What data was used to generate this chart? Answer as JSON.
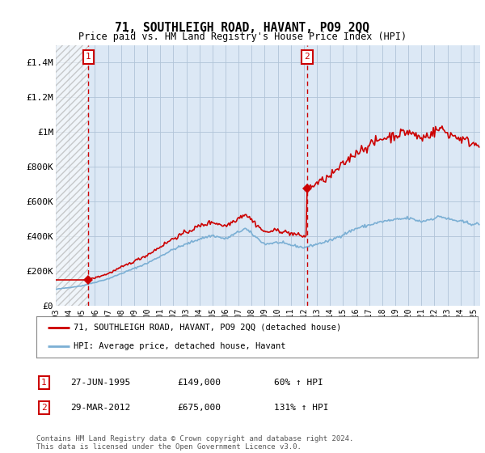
{
  "title": "71, SOUTHLEIGH ROAD, HAVANT, PO9 2QQ",
  "subtitle": "Price paid vs. HM Land Registry's House Price Index (HPI)",
  "legend_line1": "71, SOUTHLEIGH ROAD, HAVANT, PO9 2QQ (detached house)",
  "legend_line2": "HPI: Average price, detached house, Havant",
  "transaction1_date": "27-JUN-1995",
  "transaction1_price": "£149,000",
  "transaction1_pct": "60% ↑ HPI",
  "transaction1_year": 1995.5,
  "transaction1_value": 149000,
  "transaction2_date": "29-MAR-2012",
  "transaction2_price": "£675,000",
  "transaction2_pct": "131% ↑ HPI",
  "transaction2_year": 2012.24,
  "transaction2_value": 675000,
  "footer": "Contains HM Land Registry data © Crown copyright and database right 2024.\nThis data is licensed under the Open Government Licence v3.0.",
  "ylim": [
    0,
    1500000
  ],
  "yticks": [
    0,
    200000,
    400000,
    600000,
    800000,
    1000000,
    1200000,
    1400000
  ],
  "ytick_labels": [
    "£0",
    "£200K",
    "£400K",
    "£600K",
    "£800K",
    "£1M",
    "£1.2M",
    "£1.4M"
  ],
  "xlim_start": 1993.0,
  "xlim_end": 2025.5,
  "background_color": "#ffffff",
  "plot_bg_color": "#dce8f5",
  "red_color": "#cc0000",
  "blue_color": "#7bafd4",
  "grid_color": "#b0c4d8"
}
